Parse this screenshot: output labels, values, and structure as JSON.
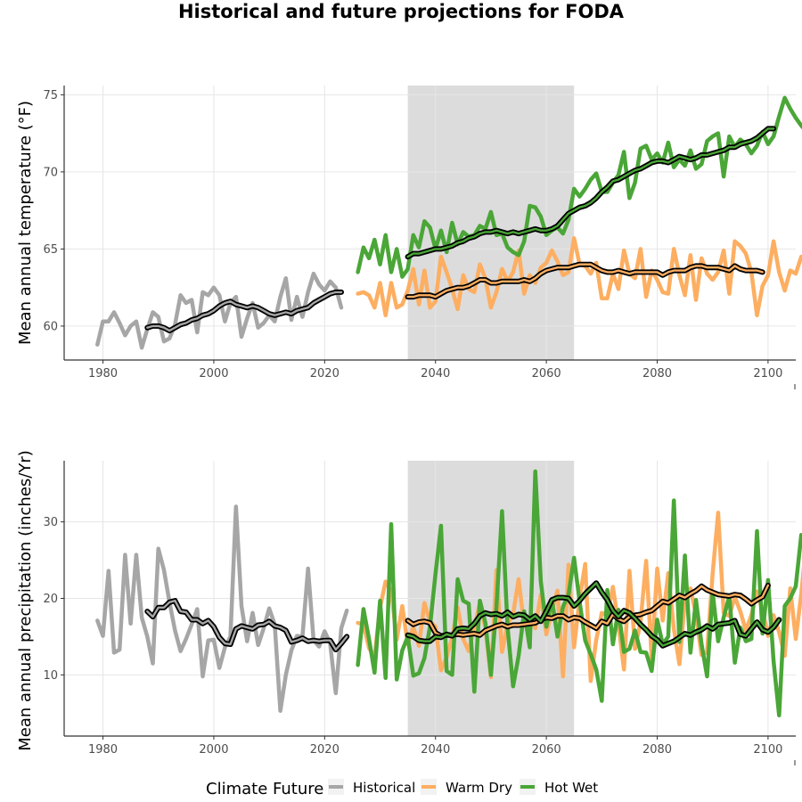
{
  "colors": {
    "historical": "#a6a6a6",
    "warm_dry": "#fdae61",
    "hot_wet": "#4aa637",
    "rolling_outline": "#000000",
    "shade": "#dcdcdc",
    "grid": "#e6e6e6"
  },
  "legend": {
    "title": "Climate Future",
    "items": [
      {
        "label": "Historical",
        "color": "#a6a6a6"
      },
      {
        "label": "Warm Dry",
        "color": "#fdae61"
      },
      {
        "label": "Hot Wet",
        "color": "#4aa637"
      }
    ],
    "position": "bottom"
  },
  "chart_data": {
    "type": "line",
    "title": "Historical and future projections for FODA",
    "shaded_period": [
      2035,
      2065
    ],
    "panels": [
      {
        "name": "temperature",
        "ylabel": "Mean annual temperature (°F)",
        "xlim": [
          1973,
          2105
        ],
        "ylim": [
          57.8,
          75.6
        ],
        "xticks": [
          1980,
          2000,
          2020,
          2040,
          2060,
          2080,
          2100
        ],
        "yticks": [
          60,
          65,
          70,
          75
        ],
        "grid": true,
        "series": [
          {
            "name": "Historical",
            "x_start": 1979,
            "values": [
              58.8,
              60.3,
              60.3,
              60.9,
              60.2,
              59.4,
              60.0,
              60.3,
              58.6,
              59.8,
              60.9,
              60.6,
              59.0,
              59.2,
              60.1,
              62.0,
              61.5,
              61.7,
              59.6,
              62.2,
              62.0,
              62.5,
              62.0,
              60.3,
              61.5,
              61.9,
              59.3,
              60.5,
              61.5,
              59.9,
              60.2,
              60.7,
              60.3,
              61.9,
              63.1,
              60.4,
              61.9,
              60.6,
              62.2,
              63.4,
              62.7,
              62.3,
              62.9,
              62.5,
              61.2
            ]
          },
          {
            "name": "Warm Dry",
            "x_start": 2026,
            "values": [
              62.1,
              62.2,
              62.0,
              61.2,
              62.8,
              60.7,
              62.8,
              61.2,
              61.4,
              62.3,
              63.7,
              61.4,
              63.6,
              61.2,
              61.6,
              64.5,
              63.5,
              62.4,
              61.1,
              63.3,
              62.4,
              62.2,
              64.0,
              63.1,
              61.2,
              62.2,
              63.7,
              62.9,
              63.5,
              64.9,
              62.1,
              63.3,
              62.8,
              63.8,
              64.1,
              64.9,
              64.2,
              63.3,
              63.5,
              65.7,
              64.0,
              63.9,
              63.4,
              64.1,
              61.8,
              61.8,
              63.4,
              62.4,
              64.9,
              63.4,
              63.1,
              65.0,
              61.9,
              63.6,
              63.0,
              62.2,
              62.1,
              65.0,
              63.3,
              62.0,
              64.6,
              61.7,
              64.4,
              63.4,
              63.0,
              63.5,
              64.9,
              62.1,
              65.5,
              65.2,
              64.7,
              63.5,
              60.7,
              62.6,
              63.3,
              65.5,
              63.5,
              62.3,
              63.6,
              63.4,
              64.5,
              64.3
            ]
          },
          {
            "name": "Hot Wet",
            "x_start": 2026,
            "values": [
              63.5,
              65.1,
              64.4,
              65.6,
              64.0,
              65.9,
              63.5,
              65.0,
              63.2,
              63.7,
              65.9,
              65.1,
              66.8,
              66.4,
              65.0,
              66.2,
              64.8,
              66.7,
              65.3,
              66.1,
              65.8,
              65.9,
              66.5,
              66.3,
              67.4,
              65.9,
              66.0,
              65.1,
              64.8,
              64.6,
              65.5,
              67.8,
              67.7,
              67.1,
              65.9,
              66.2,
              66.4,
              66.0,
              66.9,
              68.9,
              68.4,
              68.9,
              69.5,
              69.9,
              68.7,
              68.7,
              69.3,
              69.8,
              71.3,
              68.3,
              69.3,
              71.5,
              71.7,
              70.8,
              71.2,
              70.6,
              71.9,
              70.3,
              70.8,
              70.4,
              71.4,
              70.2,
              70.5,
              72.0,
              72.3,
              72.5,
              69.7,
              72.3,
              71.6,
              72.1,
              71.8,
              71.2,
              71.7,
              72.6,
              71.8,
              72.3,
              73.6,
              74.8,
              74.1,
              73.5,
              73.0,
              72.6
            ]
          },
          {
            "name": "Historical rolling mean",
            "x_start": 1988,
            "values": [
              59.9,
              60.0,
              60.0,
              59.9,
              59.7,
              59.9,
              60.1,
              60.2,
              60.4,
              60.5,
              60.7,
              60.8,
              61.0,
              61.3,
              61.5,
              61.6,
              61.4,
              61.3,
              61.2,
              61.3,
              61.2,
              61.0,
              60.8,
              60.7,
              60.8,
              60.9,
              60.8,
              61.0,
              61.1,
              61.2,
              61.5,
              61.7,
              61.9,
              62.1,
              62.2,
              62.2
            ]
          },
          {
            "name": "Warm Dry rolling mean",
            "x_start": 2035,
            "values": [
              61.9,
              61.9,
              62.0,
              62.0,
              62.0,
              61.9,
              62.1,
              62.3,
              62.4,
              62.5,
              62.5,
              62.6,
              62.8,
              63.0,
              63.0,
              62.8,
              62.8,
              62.9,
              62.9,
              62.9,
              62.9,
              63.0,
              62.9,
              63.1,
              63.4,
              63.6,
              63.7,
              63.8,
              63.8,
              63.8,
              63.9,
              64.0,
              64.0,
              64.0,
              63.8,
              63.6,
              63.5,
              63.5,
              63.6,
              63.5,
              63.4,
              63.5,
              63.5,
              63.5,
              63.5,
              63.5,
              63.3,
              63.5,
              63.6,
              63.6,
              63.6,
              63.8,
              63.9,
              63.9,
              63.8,
              63.8,
              63.8,
              63.7,
              63.6,
              63.9,
              63.7,
              63.6,
              63.6,
              63.6,
              63.5
            ]
          },
          {
            "name": "Hot Wet rolling mean",
            "x_start": 2035,
            "values": [
              64.5,
              64.7,
              64.7,
              64.8,
              64.9,
              65.0,
              65.0,
              65.1,
              65.2,
              65.4,
              65.5,
              65.7,
              65.8,
              66.0,
              66.1,
              66.1,
              66.2,
              66.1,
              66.0,
              66.1,
              66.0,
              66.1,
              66.2,
              66.3,
              66.2,
              66.2,
              66.3,
              66.5,
              66.9,
              67.3,
              67.5,
              67.7,
              67.8,
              68.0,
              68.3,
              68.7,
              69.0,
              69.4,
              69.5,
              69.7,
              69.9,
              70.1,
              70.2,
              70.4,
              70.6,
              70.7,
              70.7,
              70.6,
              70.8,
              71.0,
              70.9,
              70.8,
              70.9,
              71.1,
              71.1,
              71.2,
              71.3,
              71.4,
              71.6,
              71.6,
              71.8,
              71.9,
              72.0,
              72.2,
              72.5,
              72.8,
              72.8
            ]
          }
        ]
      },
      {
        "name": "precipitation",
        "ylabel": "Mean annual precipitation (inches/Yr)",
        "xlim": [
          1973,
          2105
        ],
        "ylim": [
          2.0,
          38.0
        ],
        "xticks": [
          1980,
          2000,
          2020,
          2040,
          2060,
          2080,
          2100
        ],
        "yticks": [
          10,
          20,
          30
        ],
        "grid": true,
        "series": [
          {
            "name": "Historical",
            "x_start": 1979,
            "values": [
              17.1,
              15.1,
              23.6,
              12.9,
              13.3,
              25.7,
              16.7,
              25.7,
              17.5,
              15.0,
              11.5,
              26.5,
              23.7,
              19.5,
              15.8,
              13.1,
              14.7,
              16.6,
              18.6,
              9.8,
              14.5,
              14.6,
              10.9,
              13.6,
              15.0,
              32.0,
              19.0,
              14.4,
              18.1,
              13.9,
              16.1,
              18.7,
              16.6,
              5.3,
              10.0,
              13.2,
              15.1,
              15.0,
              23.9,
              14.5,
              13.7,
              15.7,
              14.1,
              7.6,
              16.1,
              18.4
            ]
          },
          {
            "name": "Warm Dry",
            "x_start": 2026,
            "values": [
              16.8,
              16.6,
              13.5,
              12.4,
              18.8,
              22.2,
              21.0,
              14.6,
              19.0,
              14.0,
              16.3,
              13.8,
              19.4,
              17.0,
              16.3,
              10.6,
              12.3,
              14.9,
              18.8,
              14.7,
              13.1,
              16.2,
              19.4,
              16.1,
              9.7,
              23.7,
              13.0,
              16.6,
              17.9,
              22.5,
              16.4,
              17.6,
              16.1,
              20.5,
              15.3,
              18.5,
              21.0,
              9.8,
              24.4,
              13.6,
              20.0,
              24.5,
              9.2,
              14.6,
              18.1,
              17.8,
              21.5,
              16.6,
              10.7,
              23.6,
              13.4,
              16.9,
              24.9,
              12.2,
              23.9,
              17.1,
              23.3,
              16.0,
              11.4,
              19.7,
              21.3,
              17.9,
              12.6,
              13.0,
              23.2,
              31.2,
              18.1,
              17.7,
              20.2,
              18.3,
              15.8,
              17.8,
              20.9,
              18.4,
              15.1,
              17.8,
              15.6,
              12.5,
              21.3,
              14.7,
              20.6,
              28.0
            ]
          },
          {
            "name": "Hot Wet",
            "x_start": 2026,
            "values": [
              11.3,
              18.6,
              14.7,
              10.3,
              19.7,
              9.6,
              29.7,
              9.4,
              13.2,
              15.0,
              9.9,
              10.2,
              12.2,
              16.3,
              23.2,
              29.5,
              10.5,
              10.0,
              22.5,
              19.7,
              19.3,
              7.8,
              19.7,
              16.8,
              10.0,
              18.9,
              31.4,
              16.2,
              8.5,
              12.5,
              18.3,
              13.6,
              36.6,
              22.2,
              16.3,
              19.9,
              15.0,
              18.9,
              20.5,
              25.3,
              19.6,
              14.5,
              12.7,
              10.7,
              6.6,
              21.1,
              14.0,
              18.5,
              13.0,
              13.4,
              15.8,
              13.0,
              12.9,
              10.5,
              17.2,
              14.0,
              15.0,
              32.8,
              14.3,
              25.6,
              12.9,
              19.8,
              14.0,
              9.8,
              20.8,
              14.4,
              17.5,
              20.3,
              11.6,
              16.2,
              14.4,
              14.7,
              28.8,
              15.4,
              22.4,
              11.8,
              4.7,
              19.0,
              20.0,
              21.6,
              28.3
            ]
          },
          {
            "name": "Historical rolling mean",
            "x_start": 1988,
            "values": [
              18.3,
              17.6,
              18.8,
              18.8,
              19.5,
              19.7,
              18.3,
              18.2,
              17.2,
              17.2,
              16.7,
              17.1,
              16.3,
              14.9,
              14.1,
              14.0,
              16.0,
              16.4,
              16.2,
              16.0,
              16.5,
              16.6,
              17.0,
              16.4,
              16.2,
              15.8,
              14.3,
              14.5,
              14.8,
              14.4,
              14.5,
              14.4,
              14.5,
              14.5,
              13.3,
              14.1,
              15.0
            ]
          },
          {
            "name": "Warm Dry rolling mean",
            "x_start": 2035,
            "values": [
              17.1,
              16.6,
              16.9,
              17.0,
              16.8,
              15.5,
              15.1,
              15.2,
              15.2,
              15.3,
              15.2,
              15.3,
              15.4,
              15.2,
              15.8,
              16.1,
              16.4,
              16.6,
              16.3,
              16.5,
              16.5,
              16.6,
              16.7,
              16.8,
              17.2,
              17.5,
              17.4,
              17.7,
              17.7,
              17.2,
              17.5,
              17.4,
              16.9,
              16.5,
              16.1,
              17.0,
              16.7,
              17.9,
              17.3,
              17.0,
              17.6,
              17.8,
              17.9,
              18.2,
              18.4,
              19.0,
              19.6,
              19.4,
              19.9,
              20.4,
              20.1,
              20.6,
              21.0,
              21.6,
              21.1,
              20.8,
              20.5,
              20.4,
              20.3,
              20.5,
              20.4,
              19.9,
              19.3,
              19.8,
              20.2,
              21.7
            ]
          },
          {
            "name": "Hot Wet rolling mean",
            "x_start": 2035,
            "values": [
              15.2,
              15.0,
              14.5,
              14.4,
              14.4,
              15.0,
              14.9,
              15.3,
              15.1,
              16.0,
              16.1,
              16.0,
              16.7,
              17.7,
              18.1,
              17.9,
              18.0,
              17.7,
              18.2,
              17.6,
              17.9,
              17.8,
              17.2,
              17.7,
              17.0,
              18.3,
              19.8,
              20.1,
              20.1,
              20.0,
              19.0,
              19.7,
              20.6,
              21.3,
              22.0,
              20.8,
              19.8,
              18.4,
              17.6,
              18.4,
              18.1,
              17.4,
              16.6,
              15.9,
              15.1,
              14.6,
              13.8,
              14.1,
              14.4,
              14.9,
              15.4,
              15.2,
              15.6,
              15.9,
              16.4,
              16.0,
              16.6,
              16.7,
              16.8,
              17.1,
              15.3,
              15.1,
              16.0,
              16.9,
              15.9,
              15.6,
              16.2,
              17.2
            ]
          }
        ]
      }
    ]
  }
}
